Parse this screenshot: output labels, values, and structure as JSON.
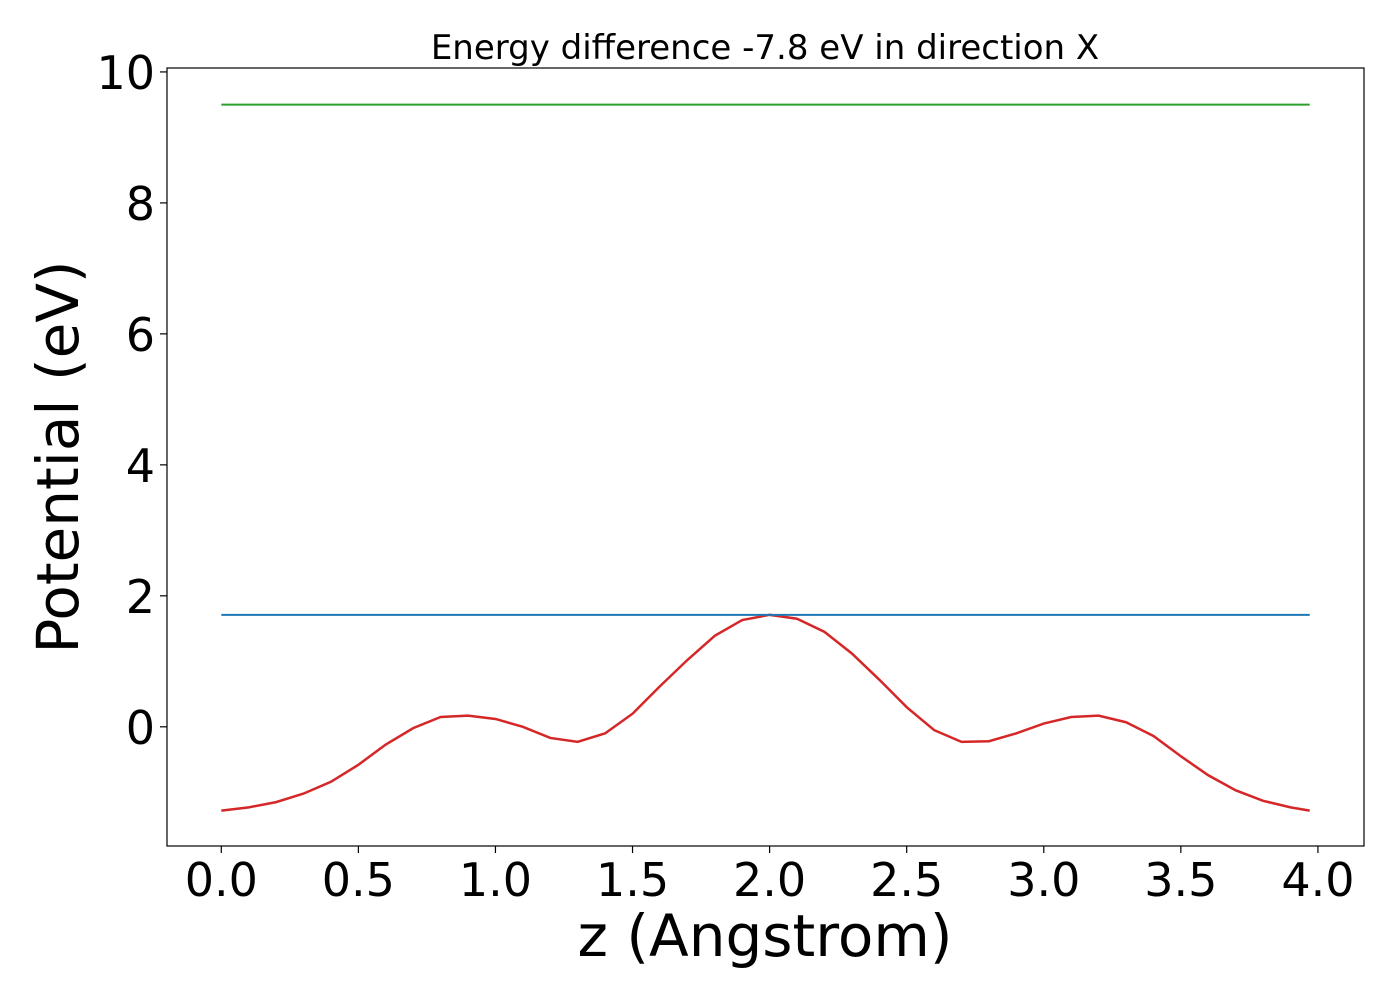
{
  "chart_data": {
    "type": "line",
    "title": "Energy difference -7.8 eV in direction X",
    "xlabel": "z (Angstrom)",
    "ylabel": "Potential (eV)",
    "xlim": [
      -0.198,
      4.168
    ],
    "ylim": [
      -1.82,
      10.06
    ],
    "xticks": [
      {
        "value": 0,
        "label": "0.0"
      },
      {
        "value": 0.5,
        "label": "0.5"
      },
      {
        "value": 1,
        "label": "1.0"
      },
      {
        "value": 1.5,
        "label": "1.5"
      },
      {
        "value": 2,
        "label": "2.0"
      },
      {
        "value": 2.5,
        "label": "2.5"
      },
      {
        "value": 3,
        "label": "3.0"
      },
      {
        "value": 3.5,
        "label": "3.5"
      },
      {
        "value": 4,
        "label": "4.0"
      }
    ],
    "yticks": [
      0,
      2,
      4,
      6,
      8,
      10
    ],
    "grid": false,
    "series": [
      {
        "color": "#d62728",
        "x": [
          0,
          0.1,
          0.2,
          0.3,
          0.4,
          0.5,
          0.6,
          0.7,
          0.8,
          0.9,
          1.0,
          1.1,
          1.2,
          1.3,
          1.4,
          1.5,
          1.6,
          1.7,
          1.8,
          1.9,
          2.0,
          2.1,
          2.2,
          2.3,
          2.4,
          2.5,
          2.6,
          2.7,
          2.8,
          2.9,
          3.0,
          3.1,
          3.2,
          3.3,
          3.4,
          3.5,
          3.6,
          3.7,
          3.8,
          3.9,
          3.97
        ],
        "values": [
          -1.28,
          -1.23,
          -1.15,
          -1.02,
          -0.84,
          -0.58,
          -0.27,
          -0.02,
          0.15,
          0.17,
          0.12,
          0.0,
          -0.17,
          -0.23,
          -0.1,
          0.2,
          0.62,
          1.02,
          1.39,
          1.63,
          1.71,
          1.65,
          1.45,
          1.12,
          0.72,
          0.3,
          -0.05,
          -0.23,
          -0.22,
          -0.1,
          0.05,
          0.15,
          0.17,
          0.07,
          -0.14,
          -0.45,
          -0.74,
          -0.97,
          -1.13,
          -1.23,
          -1.28
        ]
      },
      {
        "color": "#1f77b4",
        "x": [
          0,
          3.97
        ],
        "values": [
          1.71,
          1.71
        ]
      },
      {
        "color": "#2ca02c",
        "x": [
          0,
          3.97
        ],
        "values": [
          9.5,
          9.5
        ]
      }
    ]
  }
}
